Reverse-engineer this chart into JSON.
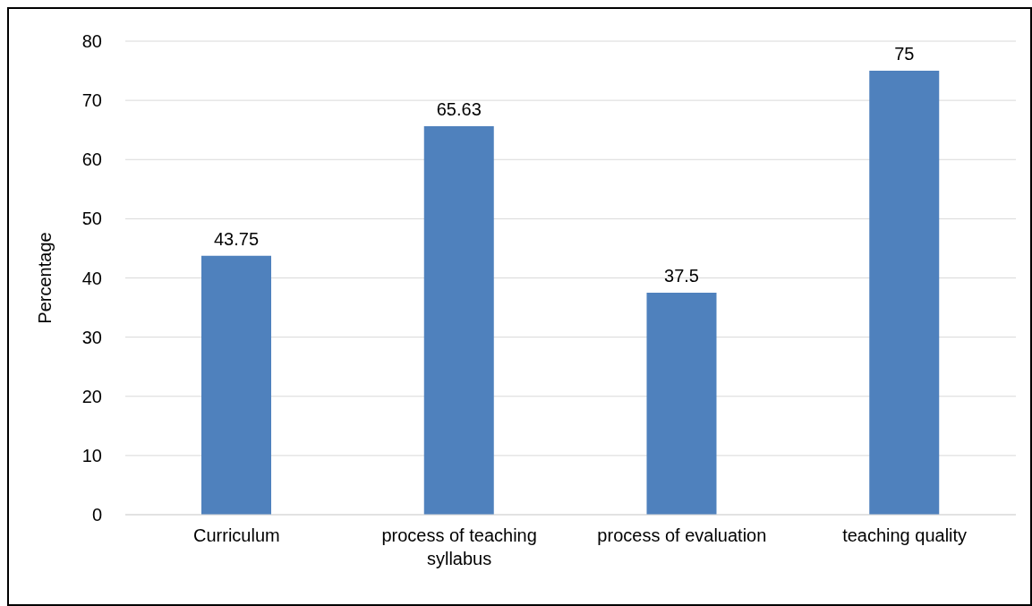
{
  "chart_data": {
    "type": "bar",
    "ylabel": "Percentage",
    "categories": [
      "Curriculum",
      "process of teaching syllabus",
      "process of evaluation",
      "teaching quality"
    ],
    "values": [
      43.75,
      65.63,
      37.5,
      75
    ],
    "color": "#4f81bd",
    "ylim": [
      0,
      80
    ],
    "yticks": [
      0,
      10,
      20,
      30,
      40,
      50,
      60,
      70,
      80
    ],
    "grid": "y",
    "data_labels": true
  }
}
